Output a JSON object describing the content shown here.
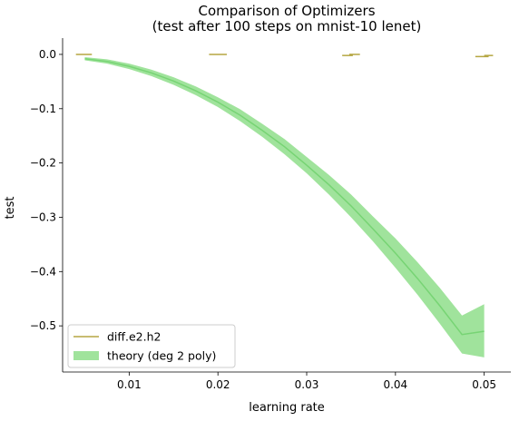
{
  "chart_data": {
    "type": "line",
    "title": "Comparison of Optimizers",
    "subtitle": "(test after 100 steps on mnist-10 lenet)",
    "xlabel": "learning rate",
    "ylabel": "test",
    "xlim": [
      0.0025,
      0.053
    ],
    "ylim": [
      -0.585,
      0.03
    ],
    "x_ticks": [
      0.01,
      0.02,
      0.03,
      0.04,
      0.05
    ],
    "x_tick_labels": [
      "0.01",
      "0.02",
      "0.03",
      "0.04",
      "0.05"
    ],
    "y_ticks": [
      0.0,
      -0.1,
      -0.2,
      -0.3,
      -0.4,
      -0.5
    ],
    "y_tick_labels": [
      "0.0",
      "−0.1",
      "−0.2",
      "−0.3",
      "−0.4",
      "−0.5"
    ],
    "grid": false,
    "spines": "left-bottom",
    "legend": {
      "placement": "lower-left",
      "entries": [
        {
          "label": "diff.e2.h2",
          "kind": "line",
          "color": "#b5a642"
        },
        {
          "label": "theory (deg 2 poly)",
          "kind": "patch",
          "color": "#a0e39c"
        }
      ]
    },
    "series": [
      {
        "name": "diff.e2.h2",
        "kind": "error-segments",
        "color": "#b5a642",
        "segments": [
          {
            "x": [
              0.004,
              0.0058
            ],
            "y": [
              0.0,
              0.0
            ]
          },
          {
            "x": [
              0.019,
              0.021
            ],
            "y": [
              0.0,
              0.0
            ]
          },
          {
            "x": [
              0.034,
              0.0352
            ],
            "y": [
              -0.002,
              -0.002
            ]
          },
          {
            "x": [
              0.0348,
              0.036
            ],
            "y": [
              0.0,
              0.0
            ]
          },
          {
            "x": [
              0.049,
              0.0505
            ],
            "y": [
              -0.004,
              -0.004
            ]
          },
          {
            "x": [
              0.05,
              0.051
            ],
            "y": [
              -0.002,
              -0.002
            ]
          }
        ]
      },
      {
        "name": "theory (deg 2 poly)",
        "kind": "band",
        "fill_color": "#a0e39c",
        "line_color": "#77d474",
        "x": [
          0.005,
          0.0075,
          0.01,
          0.0125,
          0.015,
          0.0175,
          0.02,
          0.0225,
          0.025,
          0.0275,
          0.03,
          0.0325,
          0.035,
          0.0375,
          0.04,
          0.0425,
          0.045,
          0.0475,
          0.05
        ],
        "center": [
          -0.008,
          -0.013,
          -0.022,
          -0.034,
          -0.049,
          -0.067,
          -0.088,
          -0.112,
          -0.14,
          -0.17,
          -0.204,
          -0.24,
          -0.279,
          -0.322,
          -0.366,
          -0.413,
          -0.463,
          -0.516,
          -0.51
        ],
        "lower": [
          -0.011,
          -0.017,
          -0.027,
          -0.04,
          -0.056,
          -0.075,
          -0.097,
          -0.123,
          -0.152,
          -0.184,
          -0.219,
          -0.258,
          -0.3,
          -0.345,
          -0.393,
          -0.443,
          -0.496,
          -0.551,
          -0.558
        ],
        "upper": [
          -0.005,
          -0.009,
          -0.017,
          -0.028,
          -0.042,
          -0.059,
          -0.079,
          -0.101,
          -0.128,
          -0.156,
          -0.189,
          -0.222,
          -0.258,
          -0.299,
          -0.339,
          -0.383,
          -0.43,
          -0.481,
          -0.46
        ]
      }
    ]
  }
}
